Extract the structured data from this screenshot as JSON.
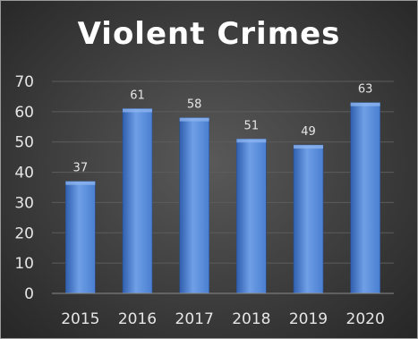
{
  "chart_data": {
    "type": "bar",
    "title": "Violent Crimes",
    "categories": [
      "2015",
      "2016",
      "2017",
      "2018",
      "2019",
      "2020"
    ],
    "values": [
      37,
      61,
      58,
      51,
      49,
      63
    ],
    "xlabel": "",
    "ylabel": "",
    "ylim": [
      0,
      70
    ],
    "yticks": [
      0,
      10,
      20,
      30,
      40,
      50,
      60,
      70
    ],
    "grid": true,
    "legend": "none",
    "data_labels": true,
    "colors": {
      "bar": "#4a7fd0",
      "bar_light": "#6f9fe6",
      "bar_dark": "#2f5fae",
      "background": "#3d3d3d",
      "text": "#e6e6e6"
    }
  }
}
